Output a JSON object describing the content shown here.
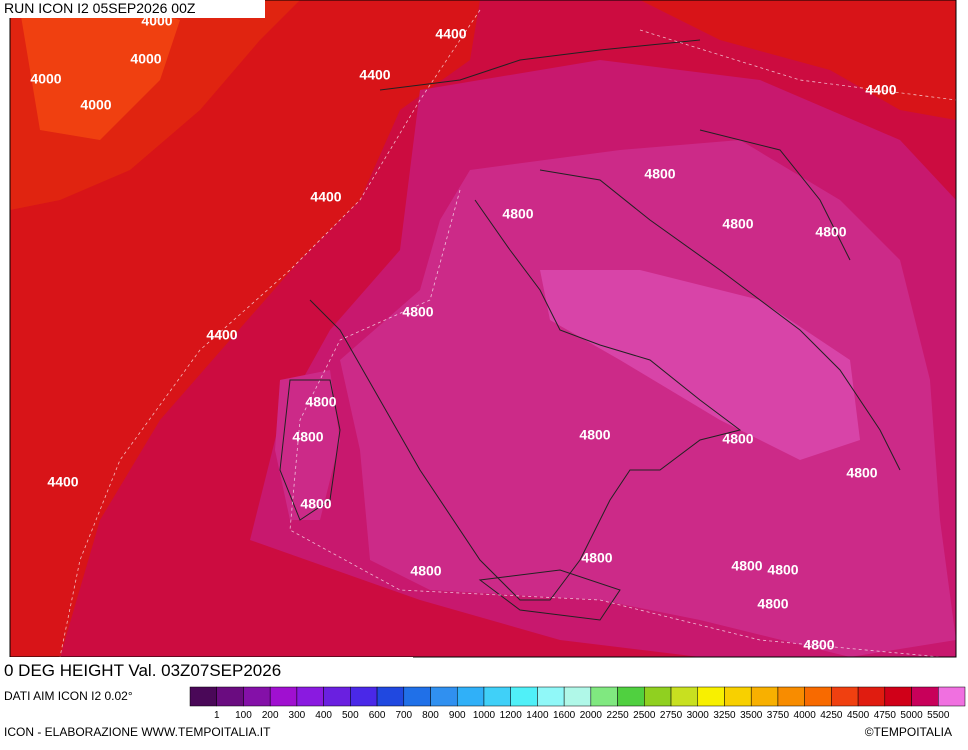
{
  "header": {
    "run": "RUN ICON I2 05SEP2026 00Z"
  },
  "map": {
    "contour_labels": [
      "4000",
      "4000",
      "4000",
      "4000",
      "4400",
      "4400",
      "4400",
      "4400",
      "4400",
      "4400",
      "4800",
      "4800",
      "4800",
      "4800",
      "4800",
      "4800",
      "4800",
      "4800",
      "4800",
      "4800",
      "4800",
      "4800",
      "4800",
      "4800",
      "4800",
      "4800",
      "4800"
    ]
  },
  "footer": {
    "title": "0 DEG HEIGHT Val. 03Z07SEP2026",
    "source": "DATI AIM ICON I2 0.02°",
    "credit": "ICON - ELABORAZIONE WWW.TEMPOITALIA.IT",
    "copyright": "©TEMPOITALIA"
  },
  "legend": {
    "levels": [
      1,
      100,
      200,
      300,
      400,
      500,
      600,
      700,
      800,
      900,
      1000,
      1200,
      1400,
      1600,
      2000,
      2250,
      2500,
      2750,
      3000,
      3250,
      3500,
      3750,
      4000,
      4250,
      4500,
      4750,
      5000,
      5500
    ],
    "colors": [
      "#4a0858",
      "#6a0c80",
      "#8410a8",
      "#a010d0",
      "#8a1ae0",
      "#6a20e0",
      "#4a28e8",
      "#2048e0",
      "#2070e8",
      "#3090f0",
      "#30b0f8",
      "#40d0f8",
      "#50f0f8",
      "#90f8f8",
      "#b0f8e8",
      "#80e880",
      "#50d040",
      "#90d020",
      "#c8e020",
      "#f8f000",
      "#f8d000",
      "#f8b000",
      "#f88c00",
      "#f86a00",
      "#f04010",
      "#e01c10",
      "#d00018",
      "#c8005a",
      "#f070e0"
    ]
  }
}
